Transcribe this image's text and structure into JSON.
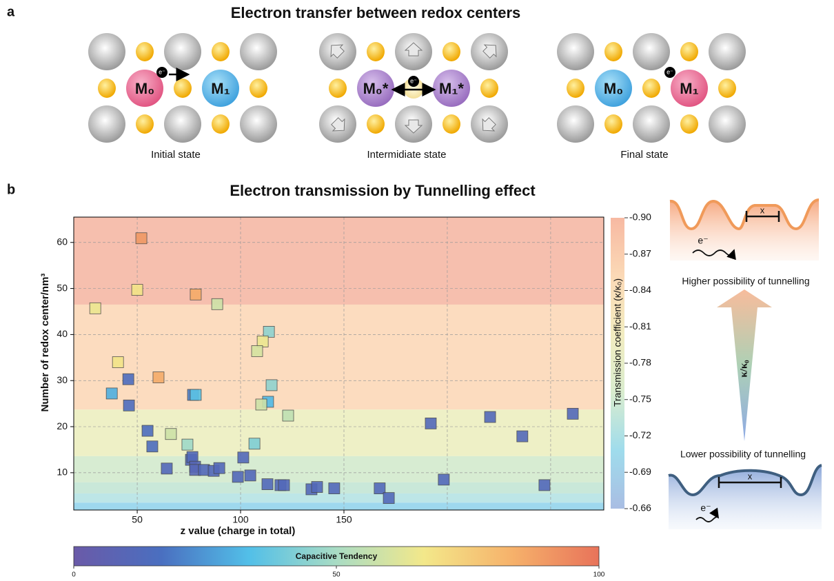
{
  "panel_a": {
    "letter": "a",
    "title": "Electron transfer between redox centers",
    "states": [
      {
        "label": "Initial state",
        "left": "M₀",
        "right": "M₁",
        "electron": "e⁻"
      },
      {
        "label": "Intermidiate state",
        "left": "M₀*",
        "right": "M₁*",
        "electron": "e⁻"
      },
      {
        "label": "Final state",
        "left": "M₀",
        "right": "M₁",
        "electron": "e⁻"
      }
    ]
  },
  "chart_data": {
    "type": "scatter",
    "letter": "b",
    "title": "Electron transmission by Tunnelling effect",
    "x_label": "z value (charge in total)",
    "y_label": "Number of redox center/nm³",
    "xlim": [
      19.3,
      275.7
    ],
    "ylim": [
      1.9,
      65.5
    ],
    "xticks": [
      50,
      100,
      150
    ],
    "xgrid": [
      50,
      100,
      150,
      200,
      250
    ],
    "yticks": [
      10,
      20,
      30,
      40,
      50,
      60
    ],
    "grid": true,
    "bands": [
      {
        "from": 46.5,
        "to": 65.5,
        "color": "#f6bfae"
      },
      {
        "from": 23.7,
        "to": 46.5,
        "color": "#fcdcbf"
      },
      {
        "from": 13.6,
        "to": 23.7,
        "color": "#eef0c6"
      },
      {
        "from": 7.9,
        "to": 13.6,
        "color": "#d7ecd2"
      },
      {
        "from": 5.5,
        "to": 7.9,
        "color": "#c9e8d9"
      },
      {
        "from": 3.5,
        "to": 5.5,
        "color": "#bde6e7"
      },
      {
        "from": 1.9,
        "to": 3.5,
        "color": "#9ed8ee"
      }
    ],
    "series": [
      {
        "x": [
          52,
          50,
          29.7,
          78.3,
          88.7,
          113.7,
          110.7,
          108,
          40.7,
          60.3,
          45.7,
          37.7,
          77,
          78.3,
          115,
          46,
          113.3,
          110,
          123,
          55,
          66.3,
          57.3,
          74.3,
          106.7,
          64.3,
          76,
          76.7,
          78,
          78,
          82.3,
          87,
          89.7,
          101.3,
          98.7,
          104.7,
          113,
          119.3,
          121,
          134.3,
          137,
          145.3,
          167.3,
          171.7,
          192,
          198.3,
          220.7,
          236.3,
          247,
          260.7
        ],
        "y": [
          60.9,
          49.7,
          45.7,
          48.7,
          46.6,
          40.6,
          38.5,
          36.4,
          34,
          30.7,
          30.3,
          27.2,
          26.9,
          26.9,
          29,
          24.6,
          25.4,
          24.8,
          22.4,
          19.1,
          18.4,
          15.7,
          16.1,
          16.3,
          10.9,
          12.8,
          13.4,
          11.3,
          10.6,
          10.6,
          10.4,
          11,
          13.3,
          9.1,
          9.4,
          7.5,
          7.3,
          7.3,
          6.4,
          6.9,
          6.6,
          6.6,
          4.5,
          20.7,
          8.5,
          22.1,
          17.9,
          7.3,
          22.8
        ],
        "c": [
          90,
          68,
          65,
          85,
          58,
          45,
          65,
          60,
          68,
          85,
          15,
          30,
          20,
          35,
          45,
          15,
          32,
          58,
          55,
          15,
          58,
          15,
          48,
          42,
          12,
          12,
          12,
          10,
          10,
          12,
          12,
          12,
          12,
          12,
          12,
          12,
          12,
          12,
          12,
          12,
          12,
          12,
          12,
          12,
          12,
          12,
          12,
          12,
          12
        ]
      }
    ],
    "colorbar": {
      "label": "Capacitive Tendency",
      "lim": [
        0,
        100
      ],
      "ticks": [
        0,
        50,
        100
      ],
      "colors": [
        "#6a5aa8",
        "#4a6fc0",
        "#52bfe8",
        "#a9dcc4",
        "#f3e88a",
        "#f6b26b",
        "#e8735a"
      ]
    },
    "colorbar2": {
      "label": "Transmission coefficient (κ/κ₀)",
      "lim": [
        -0.9,
        -0.66
      ],
      "ticks": [
        {
          "value": -0.9,
          "label": "-0.90"
        },
        -0.87,
        -0.84,
        -0.81,
        -0.78,
        -0.75,
        -0.72,
        -0.69,
        -0.66
      ],
      "colors": [
        "#f7b9a2",
        "#fbd9b6",
        "#f2ecc0",
        "#d9ecce",
        "#9fdcec",
        "#a9bde3"
      ]
    }
  },
  "diagram": {
    "top_label": "Higher possibility of tunnelling",
    "bottom_label": "Lower possibility of tunnelling",
    "arrow_label": "κ/κ₀",
    "distance_top": "x",
    "distance_bottom": "x",
    "electron_top": "e⁻",
    "electron_bottom": "e⁻"
  }
}
